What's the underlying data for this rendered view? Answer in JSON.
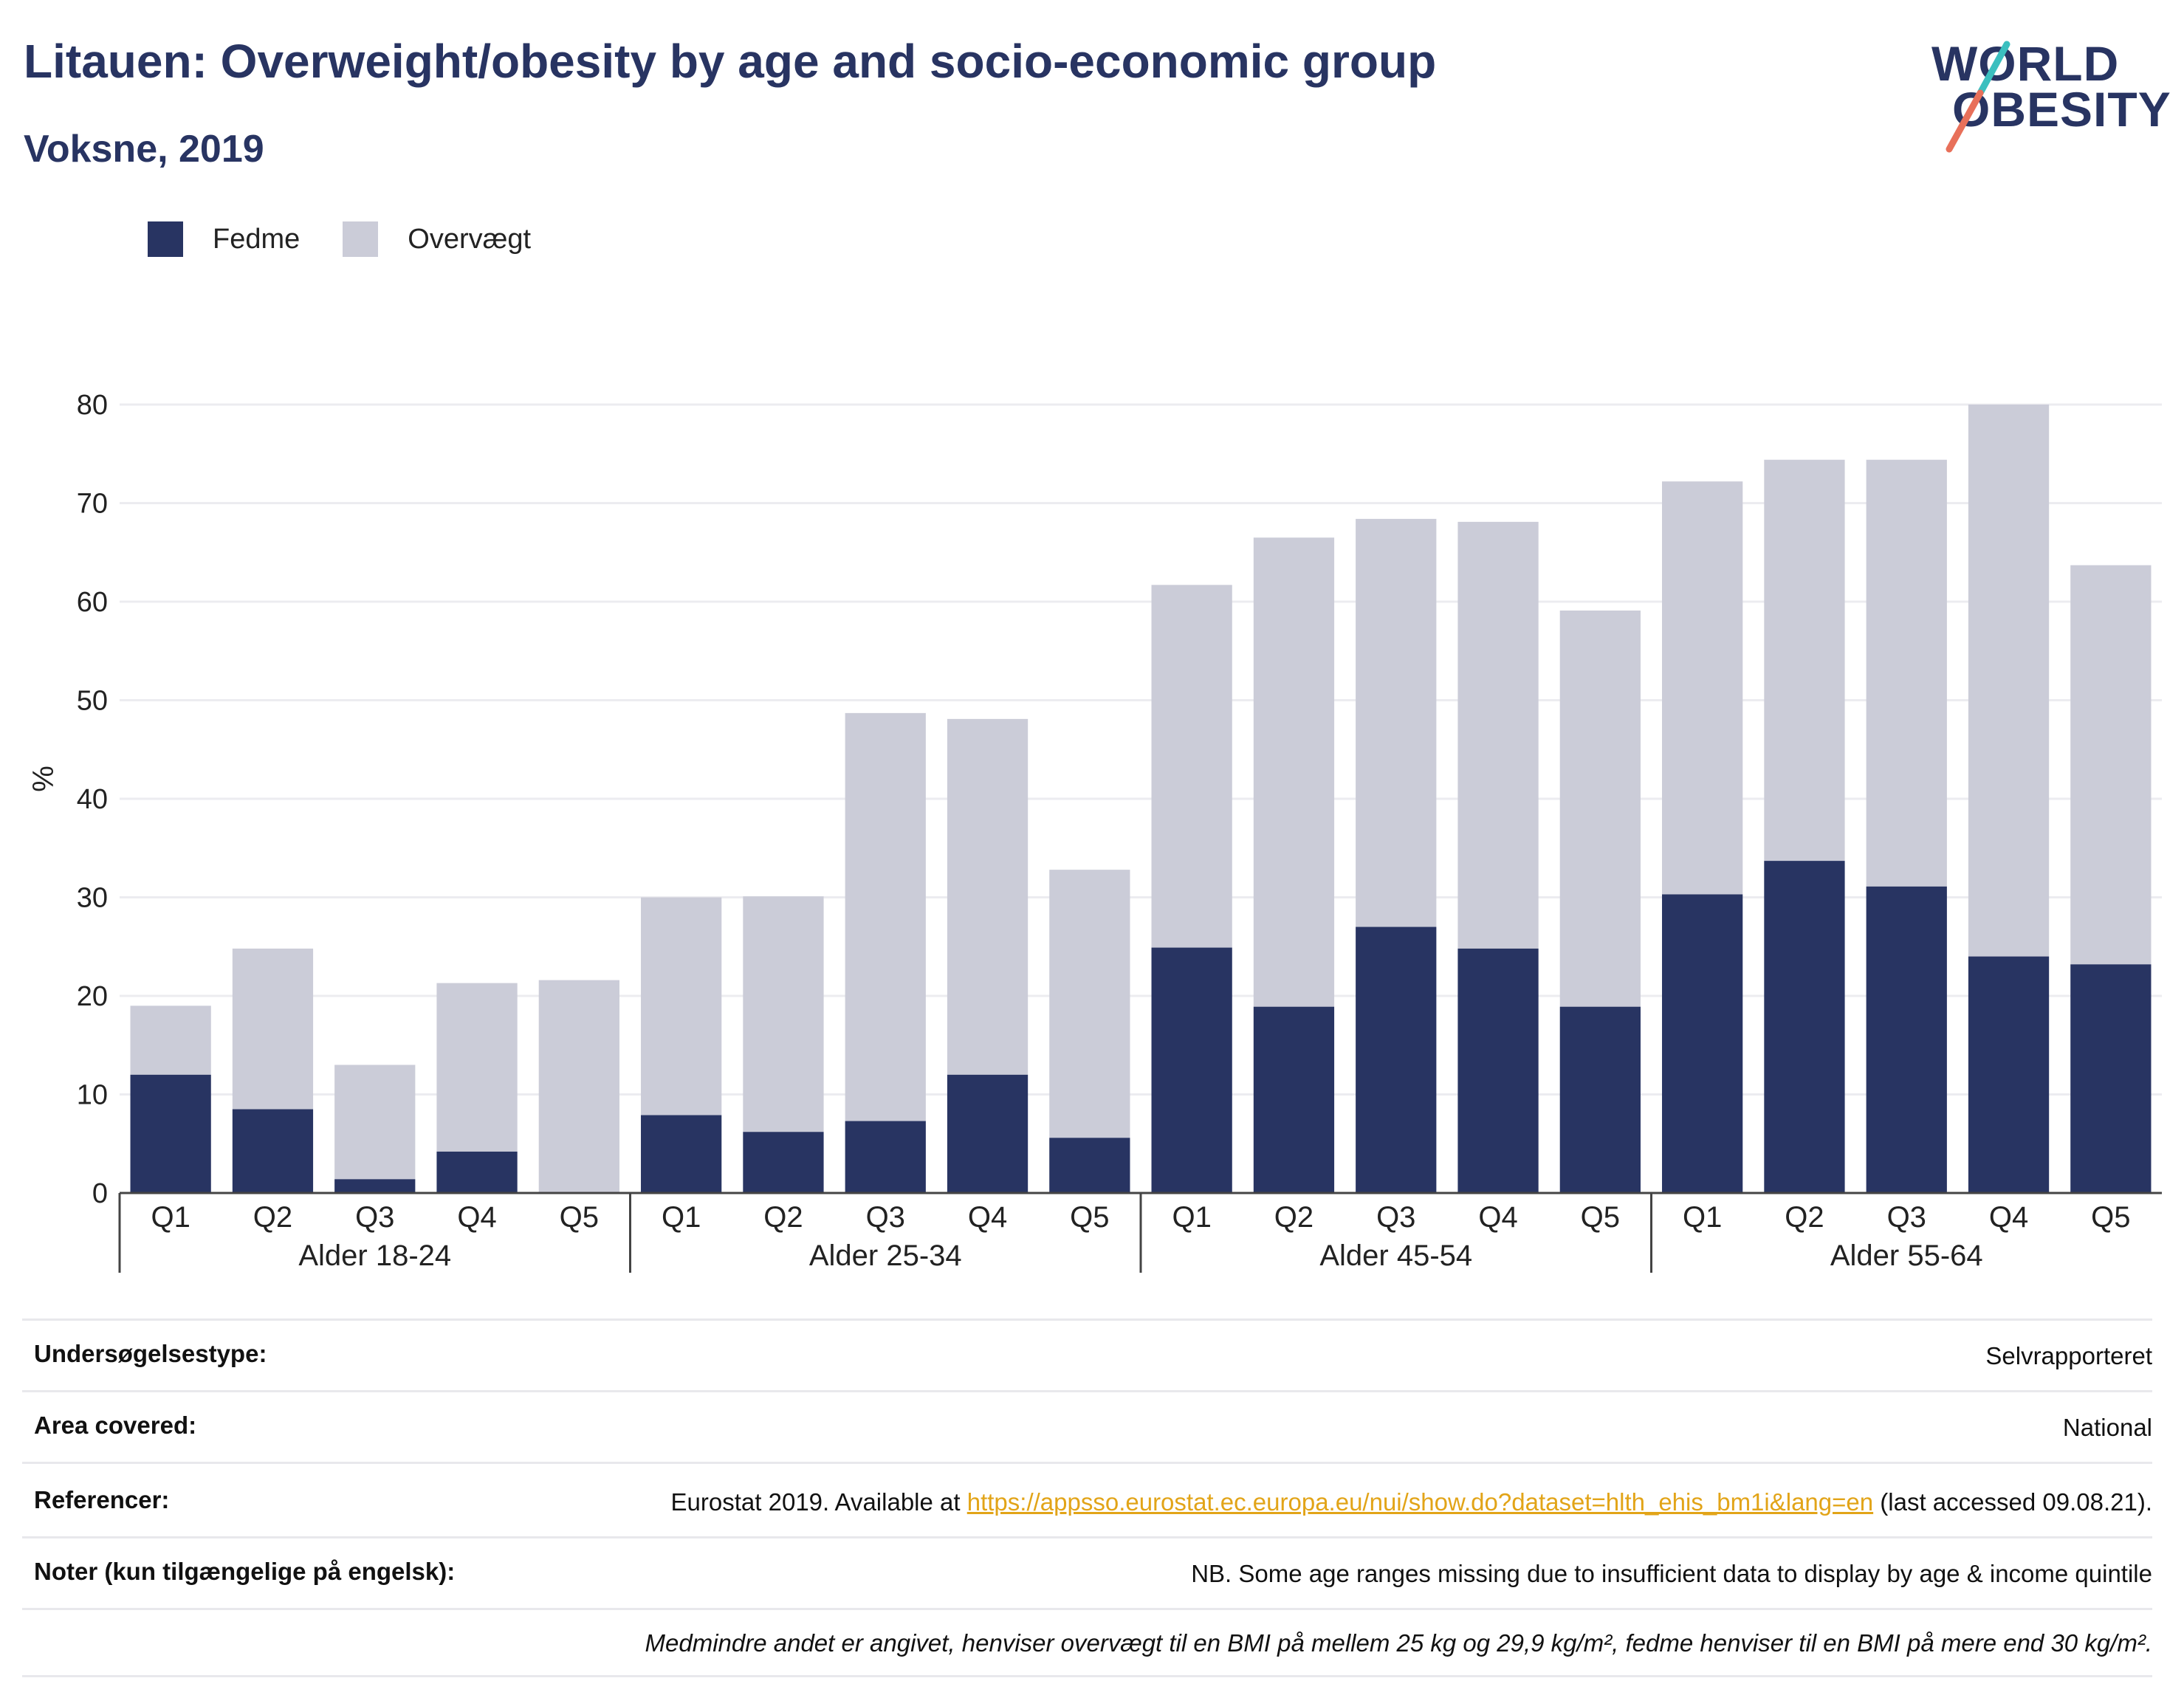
{
  "header": {
    "title": "Litauen: Overweight/obesity by age and socio-economic group",
    "subtitle": "Voksne, 2019"
  },
  "logo": {
    "line1": "WORLD",
    "line2": "OBESITY",
    "accent_teal": "#3bbfbf",
    "accent_coral": "#e8705a"
  },
  "colors": {
    "fedme": "#283462",
    "overvaegt": "#cbccd8",
    "text": "#283462",
    "link": "#e2a418"
  },
  "chart_data": {
    "type": "bar",
    "stacked": true,
    "ylabel": "%",
    "ylim": [
      0,
      80
    ],
    "yticks": [
      0,
      10,
      20,
      30,
      40,
      50,
      60,
      70,
      80
    ],
    "grid": true,
    "legend_position": "top-left",
    "groups": [
      "Alder 18-24",
      "Alder 25-34",
      "Alder 45-54",
      "Alder 55-64"
    ],
    "categories": [
      "Q1",
      "Q2",
      "Q3",
      "Q4",
      "Q5"
    ],
    "series": [
      {
        "name": "Fedme",
        "values": [
          [
            12,
            8.5,
            1.4,
            4.2,
            0
          ],
          [
            7.9,
            6.2,
            7.3,
            12,
            5.6
          ],
          [
            24.9,
            18.9,
            27,
            24.8,
            18.9
          ],
          [
            30.3,
            33.7,
            31.1,
            24,
            23.2
          ]
        ]
      },
      {
        "name": "Overvægt",
        "values": [
          [
            7,
            16.3,
            11.6,
            17.1,
            21.6
          ],
          [
            22.1,
            23.9,
            41.4,
            36.1,
            27.2
          ],
          [
            36.8,
            47.6,
            41.4,
            43.3,
            40.2
          ],
          [
            41.9,
            40.7,
            43.3,
            56,
            40.5
          ]
        ]
      }
    ]
  },
  "info": {
    "survey_label": "Undersøgelsestype:",
    "survey_value": "Selvrapporteret",
    "area_label": "Area covered:",
    "area_value": "National",
    "ref_label": "Referencer:",
    "ref_prefix": "Eurostat 2019. Available at ",
    "ref_link": "https://appsso.eurostat.ec.europa.eu/nui/show.do?dataset=hlth_ehis_bm1i&lang=en",
    "ref_suffix": " (last accessed 09.08.21).",
    "notes_label": "Noter (kun tilgængelige på engelsk):",
    "notes_value": "NB. Some age ranges missing due to insufficient data to display by age & income quintile",
    "footnote": "Medmindre andet er angivet, henviser overvægt til en BMI på mellem 25 kg og 29,9 kg/m², fedme henviser til en BMI på mere end 30 kg/m²."
  }
}
